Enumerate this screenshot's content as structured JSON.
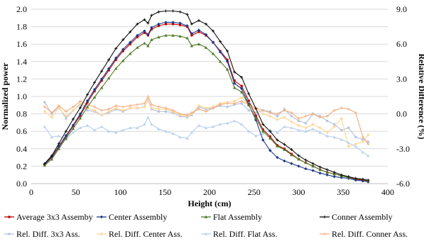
{
  "chart_data": {
    "type": "line",
    "xlabel": "Height (cm)",
    "ylabel": "Normalized power",
    "y2label": "Relative Difference (%)",
    "xlim": [
      0,
      400
    ],
    "ylim": [
      0,
      2.0
    ],
    "y2lim": [
      -6.0,
      9.0
    ],
    "xticks": [
      "0",
      "50",
      "100",
      "150",
      "200",
      "250",
      "300",
      "350",
      "400"
    ],
    "yticks": [
      "0.0",
      "0.2",
      "0.4",
      "0.6",
      "0.8",
      "1.0",
      "1.2",
      "1.4",
      "1.6",
      "1.8",
      "2.0"
    ],
    "y2ticks": [
      "-6.0",
      "-3.0",
      "0.0",
      "3.0",
      "6.0",
      "9.0"
    ],
    "grid": "horizontal",
    "legend_position": "bottom",
    "x": [
      15,
      23,
      31,
      39,
      47,
      55,
      63,
      71,
      79,
      87,
      95,
      103,
      111,
      119,
      127,
      131,
      135,
      143,
      151,
      159,
      167,
      175,
      180,
      188,
      196,
      204,
      212,
      220,
      228,
      236,
      244,
      252,
      260,
      268,
      276,
      284,
      292,
      300,
      308,
      316,
      324,
      332,
      340,
      348,
      356,
      364,
      372,
      378
    ],
    "series": [
      {
        "name": "Average 3x3 Assemby",
        "axis": "left",
        "color": "#c00000",
        "marker": "square",
        "values": [
          0.22,
          0.3,
          0.42,
          0.54,
          0.66,
          0.78,
          0.93,
          1.06,
          1.18,
          1.3,
          1.42,
          1.52,
          1.6,
          1.68,
          1.73,
          1.7,
          1.77,
          1.81,
          1.83,
          1.83,
          1.82,
          1.8,
          1.7,
          1.74,
          1.7,
          1.62,
          1.52,
          1.42,
          1.18,
          1.12,
          0.95,
          0.78,
          0.62,
          0.54,
          0.44,
          0.4,
          0.34,
          0.28,
          0.24,
          0.2,
          0.16,
          0.13,
          0.11,
          0.09,
          0.07,
          0.05,
          0.04,
          0.03
        ]
      },
      {
        "name": "Center Assembly",
        "axis": "left",
        "color": "#1f3a8a",
        "marker": "diamond",
        "values": [
          0.22,
          0.31,
          0.43,
          0.55,
          0.67,
          0.8,
          0.95,
          1.08,
          1.2,
          1.32,
          1.44,
          1.54,
          1.62,
          1.7,
          1.75,
          1.71,
          1.79,
          1.83,
          1.85,
          1.85,
          1.84,
          1.81,
          1.72,
          1.76,
          1.71,
          1.62,
          1.51,
          1.4,
          1.15,
          1.09,
          0.91,
          0.73,
          0.5,
          0.38,
          0.3,
          0.26,
          0.23,
          0.2,
          0.17,
          0.15,
          0.12,
          0.1,
          0.08,
          0.07,
          0.06,
          0.04,
          0.03,
          0.02
        ]
      },
      {
        "name": "Flat Assembly",
        "axis": "left",
        "color": "#4f7a28",
        "marker": "triangle",
        "values": [
          0.21,
          0.28,
          0.4,
          0.52,
          0.63,
          0.75,
          0.88,
          0.99,
          1.1,
          1.21,
          1.32,
          1.41,
          1.49,
          1.56,
          1.61,
          1.58,
          1.65,
          1.68,
          1.7,
          1.7,
          1.69,
          1.67,
          1.58,
          1.6,
          1.56,
          1.49,
          1.4,
          1.31,
          1.1,
          1.05,
          0.9,
          0.75,
          0.6,
          0.52,
          0.43,
          0.39,
          0.33,
          0.28,
          0.24,
          0.2,
          0.16,
          0.13,
          0.11,
          0.09,
          0.07,
          0.06,
          0.05,
          0.03
        ]
      },
      {
        "name": "Conner Assembly",
        "axis": "left",
        "color": "#111111",
        "marker": "cross",
        "values": [
          0.23,
          0.32,
          0.46,
          0.6,
          0.74,
          0.87,
          1.02,
          1.16,
          1.29,
          1.42,
          1.55,
          1.65,
          1.74,
          1.83,
          1.88,
          1.84,
          1.93,
          1.97,
          1.98,
          1.98,
          1.97,
          1.94,
          1.83,
          1.87,
          1.83,
          1.75,
          1.63,
          1.52,
          1.28,
          1.22,
          1.03,
          0.86,
          0.68,
          0.6,
          0.5,
          0.45,
          0.39,
          0.32,
          0.27,
          0.23,
          0.19,
          0.16,
          0.13,
          0.1,
          0.08,
          0.06,
          0.05,
          0.04
        ]
      },
      {
        "name": "Rel. Diff. 3x3 Ass.",
        "axis": "right",
        "color": "#b8c4de",
        "marker": "square",
        "values": [
          1.0,
          0.0,
          0.6,
          -0.4,
          0.3,
          0.8,
          0.3,
          0.2,
          -0.1,
          0.1,
          0.4,
          0.2,
          0.5,
          0.5,
          0.6,
          1.2,
          0.4,
          0.2,
          0.2,
          0.1,
          -0.2,
          -0.3,
          -0.1,
          0.6,
          0.4,
          0.5,
          0.7,
          0.6,
          0.8,
          0.9,
          0.3,
          0.1,
          0.3,
          0.2,
          -0.2,
          0.4,
          -0.2,
          -0.6,
          -0.8,
          0.0,
          -0.2,
          -0.6,
          -0.9,
          -1.4,
          -1.2,
          -2.0,
          -2.2,
          -2.4
        ]
      },
      {
        "name": "Rel. Diff. Center Ass.",
        "axis": "right",
        "color": "#ffd79a",
        "marker": "diamond",
        "values": [
          0.2,
          -0.3,
          0.5,
          -0.2,
          0.3,
          0.9,
          0.5,
          0.3,
          -0.1,
          0.2,
          0.5,
          0.3,
          0.5,
          0.5,
          0.6,
          1.3,
          0.5,
          0.4,
          0.4,
          0.2,
          -0.1,
          -0.2,
          0.0,
          0.7,
          0.5,
          0.6,
          0.9,
          1.0,
          1.1,
          1.4,
          0.8,
          0.5,
          0.0,
          -0.2,
          -0.5,
          -0.3,
          -0.7,
          -1.0,
          -1.2,
          -0.9,
          -1.2,
          -1.6,
          -1.1,
          -0.4,
          -2.8,
          -2.6,
          -2.4,
          -1.8
        ]
      },
      {
        "name": "Rel. Diff. Flat Ass.",
        "axis": "right",
        "color": "#bcd2ee",
        "marker": "triangle",
        "values": [
          -1.1,
          -2.0,
          -1.9,
          -2.2,
          -1.6,
          -1.2,
          -1.0,
          -1.4,
          -1.1,
          -1.5,
          -1.6,
          -1.4,
          -1.2,
          -1.2,
          -0.9,
          -0.3,
          -0.9,
          -1.3,
          -1.5,
          -1.7,
          -2.0,
          -2.1,
          -1.6,
          -1.0,
          -1.2,
          -1.1,
          -0.9,
          -0.8,
          -0.6,
          -0.9,
          -1.5,
          -1.9,
          -1.7,
          -1.4,
          -1.6,
          -1.1,
          -1.2,
          -1.4,
          -1.5,
          -1.3,
          -1.6,
          -1.9,
          -2.0,
          -2.2,
          -2.5,
          -2.8,
          -3.3,
          -3.6
        ]
      },
      {
        "name": "Rel. Diff. Conner Ass.",
        "axis": "right",
        "color": "#f4b183",
        "marker": "cross",
        "values": [
          0.6,
          0.1,
          0.7,
          0.2,
          0.6,
          1.1,
          0.8,
          0.6,
          0.3,
          0.4,
          0.7,
          0.6,
          0.7,
          0.8,
          0.9,
          1.5,
          0.8,
          0.6,
          0.5,
          0.3,
          0.0,
          -0.1,
          0.1,
          0.4,
          0.2,
          0.5,
          0.8,
          0.9,
          0.9,
          1.1,
          0.8,
          0.5,
          0.3,
          0.1,
          0.0,
          0.3,
          0.1,
          -0.4,
          -0.2,
          0.0,
          -0.3,
          -0.2,
          0.3,
          0.5,
          0.4,
          0.1,
          -2.0,
          -2.6
        ]
      }
    ]
  }
}
